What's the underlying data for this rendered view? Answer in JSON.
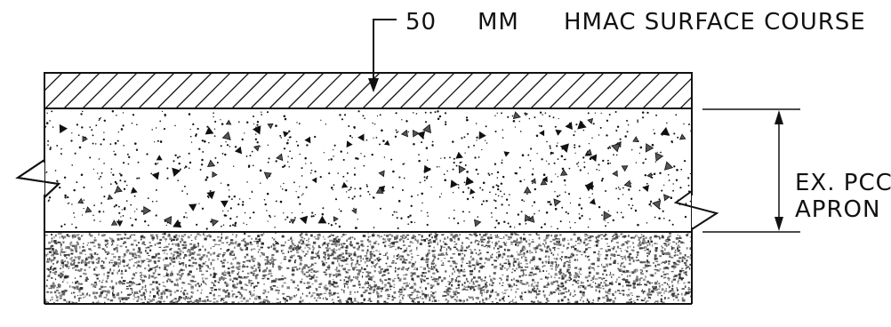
{
  "callout_top": {
    "thickness": "50",
    "unit": "MM",
    "material": "HMAC SURFACE COURSE"
  },
  "callout_right": {
    "line1": "EX. PCC",
    "line2": "APRON"
  },
  "colors": {
    "ink": "#111111",
    "paper": "#ffffff"
  }
}
